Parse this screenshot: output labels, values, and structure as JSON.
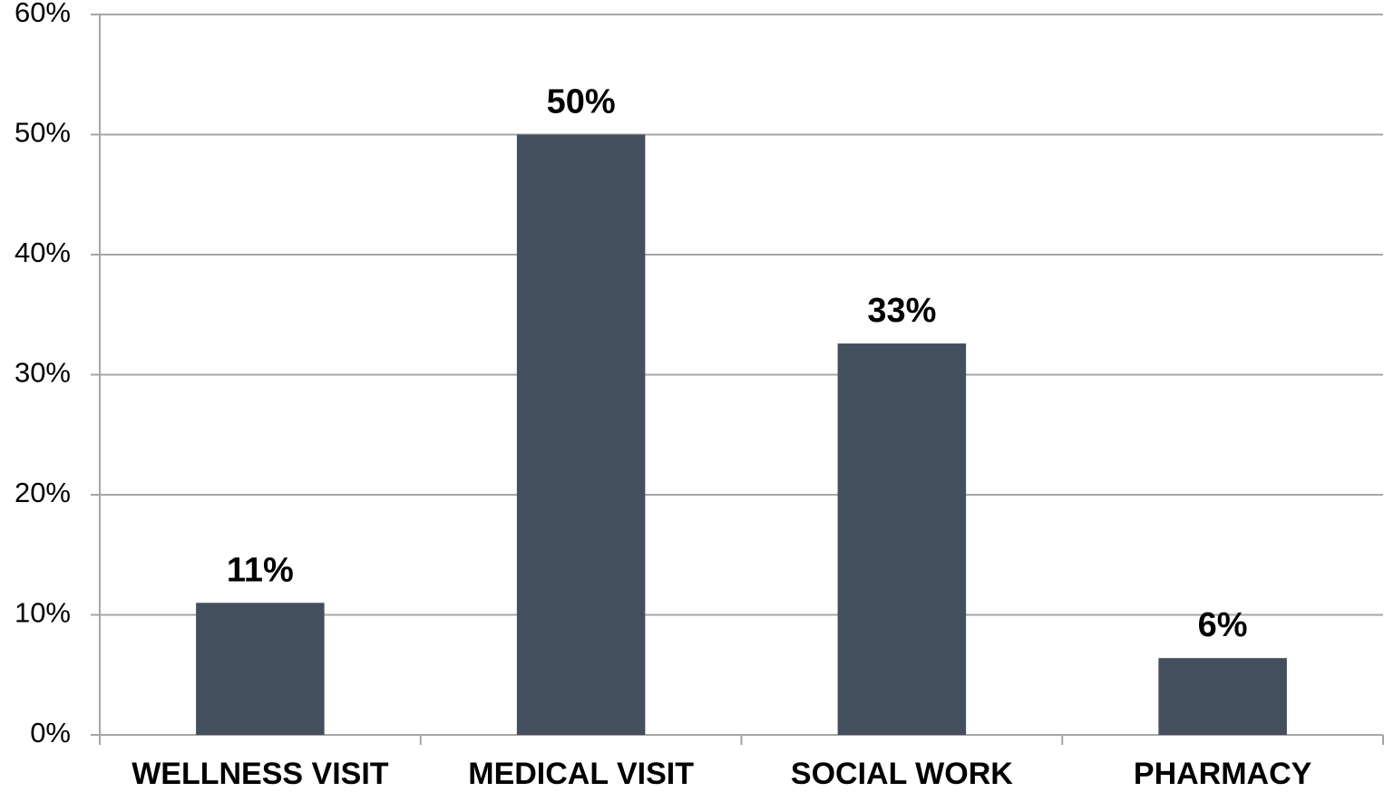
{
  "chart_data": {
    "type": "bar",
    "categories": [
      "WELLNESS VISIT",
      "MEDICAL VISIT",
      "SOCIAL WORK",
      "PHARMACY"
    ],
    "values": [
      11,
      50,
      32.6,
      6.4
    ],
    "value_labels": [
      "11%",
      "50%",
      "33%",
      "6%"
    ],
    "color": "#434f5c",
    "ylim": [
      0,
      60
    ],
    "yticks": [
      {
        "value": 0,
        "label": "0%"
      },
      {
        "value": 10,
        "label": "10%"
      },
      {
        "value": 20,
        "label": "20%"
      },
      {
        "value": 30,
        "label": "30%"
      },
      {
        "value": 40,
        "label": "40%"
      },
      {
        "value": 50,
        "label": "50%"
      },
      {
        "value": 60,
        "label": "60%"
      }
    ],
    "grid": true
  }
}
